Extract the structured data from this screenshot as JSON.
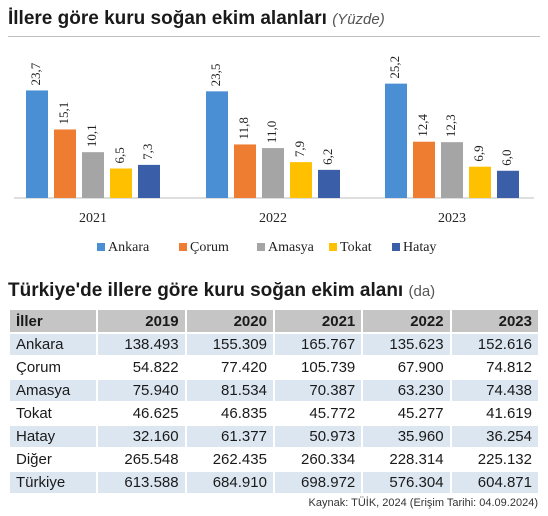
{
  "chart_title": "İllere göre kuru soğan ekim alanları",
  "chart_unit": "(Yüzde)",
  "chart_data": {
    "type": "bar",
    "categories": [
      "2021",
      "2022",
      "2023"
    ],
    "series": [
      {
        "name": "Ankara",
        "color": "#4a8fd4",
        "values": [
          23.7,
          23.5,
          25.2
        ],
        "labels": [
          "23,7",
          "23,5",
          "25,2"
        ]
      },
      {
        "name": "Çorum",
        "color": "#ee7d31",
        "values": [
          15.1,
          11.8,
          12.4
        ],
        "labels": [
          "15,1",
          "11,8",
          "12,4"
        ]
      },
      {
        "name": "Amasya",
        "color": "#a5a5a5",
        "values": [
          10.1,
          11.0,
          12.3
        ],
        "labels": [
          "10,1",
          "11,0",
          "12,3"
        ]
      },
      {
        "name": "Tokat",
        "color": "#ffc000",
        "values": [
          6.5,
          7.9,
          6.9
        ],
        "labels": [
          "6,5",
          "7,9",
          "6,9"
        ]
      },
      {
        "name": "Hatay",
        "color": "#3b5ea8",
        "values": [
          7.3,
          6.2,
          6.0
        ],
        "labels": [
          "7,3",
          "6,2",
          "6,0"
        ]
      }
    ],
    "ylim": [
      0,
      26
    ],
    "legend": "bottom"
  },
  "table_title": "Türkiye'de illere göre kuru soğan ekim alanı",
  "table_unit": "(da)",
  "table": {
    "header": [
      "İller",
      "2019",
      "2020",
      "2021",
      "2022",
      "2023"
    ],
    "rows": [
      [
        "Ankara",
        "138.493",
        "155.309",
        "165.767",
        "135.623",
        "152.616"
      ],
      [
        "Çorum",
        "54.822",
        "77.420",
        "105.739",
        "67.900",
        "74.812"
      ],
      [
        "Amasya",
        "75.940",
        "81.534",
        "70.387",
        "63.230",
        "74.438"
      ],
      [
        "Tokat",
        "46.625",
        "46.835",
        "45.772",
        "45.277",
        "41.619"
      ],
      [
        "Hatay",
        "32.160",
        "61.377",
        "50.973",
        "35.960",
        "36.254"
      ],
      [
        "Diğer",
        "265.548",
        "262.435",
        "260.334",
        "228.314",
        "225.132"
      ],
      [
        "Türkiye",
        "613.588",
        "684.910",
        "698.972",
        "576.304",
        "604.871"
      ]
    ]
  },
  "source": "Kaynak: TÜİK, 2024 (Erişim Tarihi: 04.09.2024)"
}
